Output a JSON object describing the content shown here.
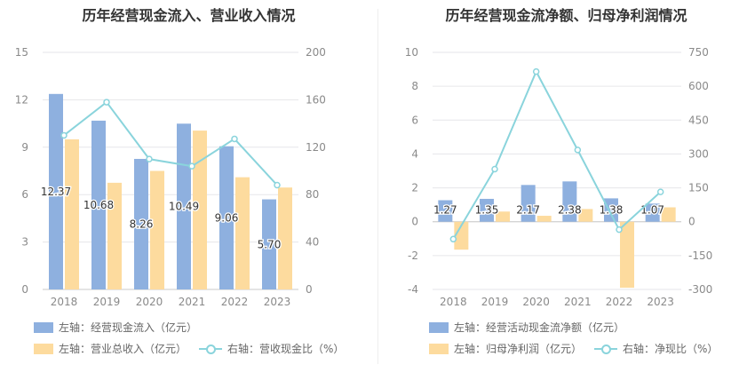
{
  "charts": [
    {
      "title": "历年经营现金流入、营业收入情况",
      "legend": [
        "左轴：经营现金流入（亿元）",
        "左轴：营业总收入（亿元）",
        "右轴：营收现金比（%）"
      ]
    },
    {
      "title": "历年经营现金流净额、归母净利润情况",
      "legend": [
        "左轴：经营活动现金流净额（亿元）",
        "左轴：归母净利润（亿元）",
        "右轴：净现比（%）"
      ]
    }
  ],
  "chart_data": [
    {
      "type": "bar",
      "title": "历年经营现金流入、营业收入情况",
      "categories": [
        "2018",
        "2019",
        "2020",
        "2021",
        "2022",
        "2023"
      ],
      "left_axis": {
        "min": 0,
        "max": 15,
        "ticks": [
          0,
          3,
          6,
          9,
          12,
          15
        ]
      },
      "right_axis": {
        "min": 0,
        "max": 200,
        "ticks": [
          0,
          40,
          80,
          120,
          160,
          200
        ]
      },
      "series": [
        {
          "name": "左轴：经营现金流入（亿元）",
          "type": "bar",
          "axis": "left",
          "color": "#8eb0df",
          "values": [
            12.37,
            10.68,
            8.26,
            10.49,
            9.06,
            5.7
          ],
          "labels": [
            "12.37",
            "10.68",
            "8.26",
            "10.49",
            "9.06",
            "5.70"
          ]
        },
        {
          "name": "左轴：营业总收入（亿元）",
          "type": "bar",
          "axis": "left",
          "color": "#fddb9e",
          "values": [
            9.5,
            6.75,
            7.5,
            10.05,
            7.1,
            6.45
          ]
        },
        {
          "name": "右轴：营收现金比（%）",
          "type": "line",
          "axis": "right",
          "color": "#8ad4dc",
          "values": [
            130,
            158,
            110,
            104,
            127,
            88
          ]
        }
      ],
      "grid": true,
      "legend_position": "bottom"
    },
    {
      "type": "bar",
      "title": "历年经营现金流净额、归母净利润情况",
      "categories": [
        "2018",
        "2019",
        "2020",
        "2021",
        "2022",
        "2023"
      ],
      "left_axis": {
        "min": -4,
        "max": 10,
        "ticks": [
          -4,
          -2,
          0,
          2,
          4,
          6,
          8,
          10
        ]
      },
      "right_axis": {
        "min": -300,
        "max": 750,
        "ticks": [
          -300,
          -150,
          0,
          150,
          300,
          450,
          600,
          750
        ]
      },
      "series": [
        {
          "name": "左轴：经营活动现金流净额（亿元）",
          "type": "bar",
          "axis": "left",
          "color": "#8eb0df",
          "values": [
            1.27,
            1.35,
            2.17,
            2.38,
            1.38,
            1.07
          ],
          "labels": [
            "1.27",
            "1.35",
            "2.17",
            "2.38",
            "1.38",
            "1.07"
          ]
        },
        {
          "name": "左轴：归母净利润（亿元）",
          "type": "bar",
          "axis": "left",
          "color": "#fddb9e",
          "values": [
            -1.65,
            0.6,
            0.35,
            0.75,
            -3.9,
            0.85
          ]
        },
        {
          "name": "右轴：净现比（%）",
          "type": "line",
          "axis": "right",
          "color": "#8ad4dc",
          "values": [
            -77,
            233,
            665,
            318,
            -35,
            132
          ]
        }
      ],
      "grid": true,
      "legend_position": "bottom"
    }
  ]
}
